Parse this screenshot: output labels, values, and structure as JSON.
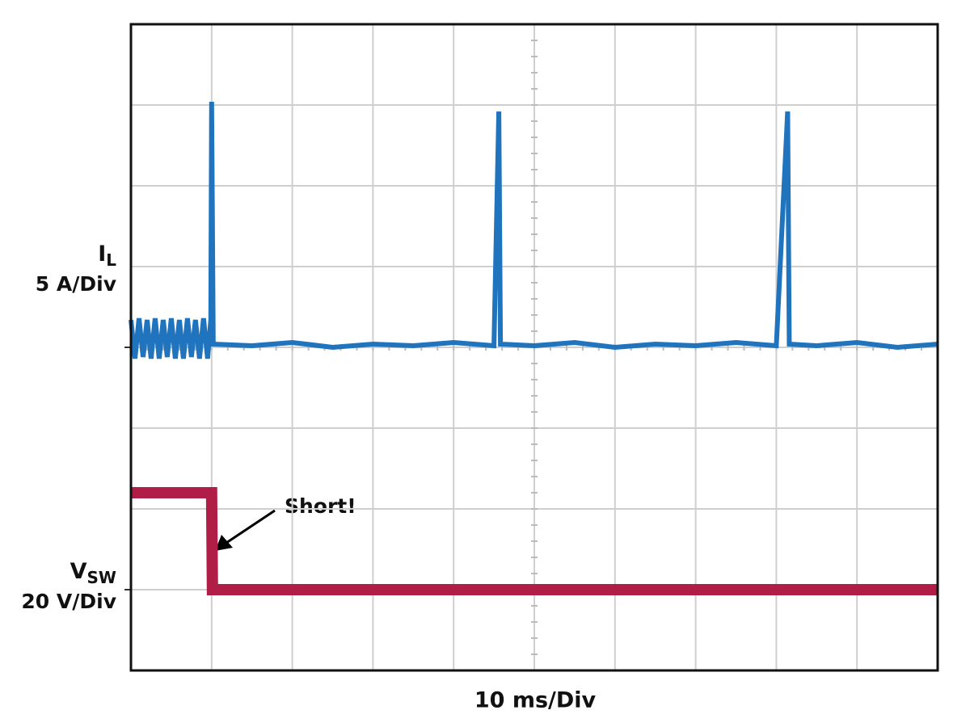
{
  "chart_data": {
    "type": "line",
    "x_label": "10 ms/Div",
    "annotation": "Short!",
    "xlim": [
      0,
      100
    ],
    "xticks": [
      0,
      10,
      20,
      30,
      40,
      50,
      60,
      70,
      80,
      90,
      100
    ],
    "ylim": [
      -20,
      20
    ],
    "yticks": [
      -20,
      -15,
      -10,
      -5,
      0,
      5,
      10,
      15,
      20
    ],
    "y2lim": [
      -20,
      140
    ],
    "grid": true,
    "series": [
      {
        "name": "I",
        "name_sub": "L",
        "scale": "5 A/Div",
        "color": "#1f74bd",
        "x": [
          0,
          0.5,
          1,
          1.5,
          2,
          2.5,
          3,
          3.5,
          4,
          4.5,
          5,
          5.5,
          6,
          6.5,
          7,
          7.5,
          8,
          8.5,
          9,
          9.5,
          9.9,
          10,
          10.2,
          15,
          20,
          25,
          30,
          35,
          40,
          45,
          45.6,
          45.8,
          50,
          55,
          60,
          65,
          70,
          75,
          80,
          81.4,
          81.6,
          85,
          90,
          95,
          100
        ],
        "values": [
          1.7,
          -0.7,
          1.8,
          -0.6,
          1.7,
          -0.7,
          1.8,
          -0.7,
          1.7,
          -0.6,
          1.8,
          -0.7,
          1.7,
          -0.7,
          1.8,
          -0.6,
          1.7,
          -0.7,
          1.8,
          -0.7,
          1.7,
          15.2,
          0.2,
          0.1,
          0.3,
          0.0,
          0.2,
          0.1,
          0.3,
          0.1,
          14.6,
          0.2,
          0.1,
          0.3,
          0.0,
          0.2,
          0.1,
          0.3,
          0.1,
          14.6,
          0.2,
          0.1,
          0.3,
          0.0,
          0.2
        ]
      },
      {
        "name": "V",
        "name_sub": "SW",
        "scale": "20 V/Div",
        "color": "#b01d47",
        "axis": "y2",
        "x": [
          0,
          5,
          9.9,
          10,
          10.1,
          50,
          100
        ],
        "values": [
          24,
          24,
          24,
          24,
          0,
          0,
          0
        ]
      }
    ]
  }
}
